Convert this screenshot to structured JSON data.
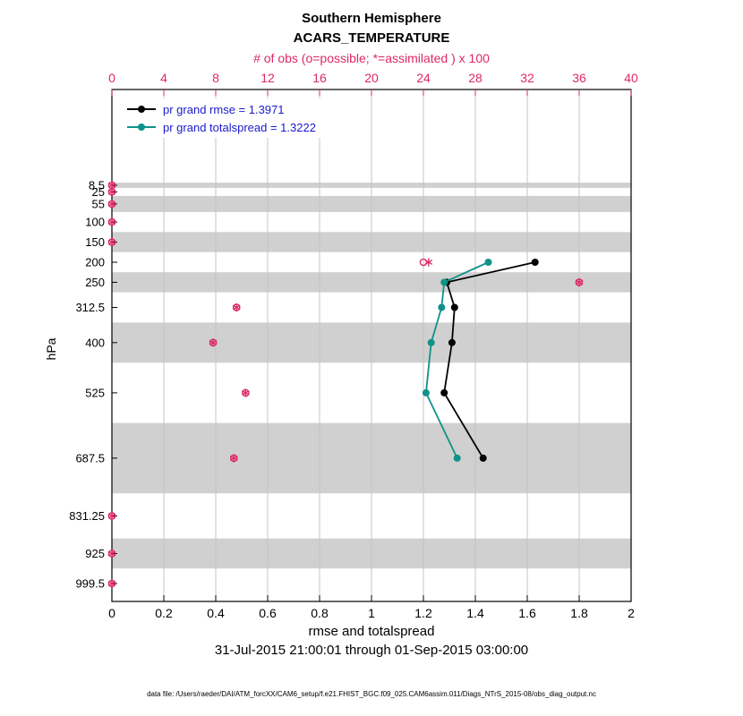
{
  "header": {
    "title_line1": "Southern Hemisphere",
    "title_line2": "ACARS_TEMPERATURE",
    "obs_axis_label": "# of obs (o=possible; *=assimilated ) x 100"
  },
  "legend": {
    "text_color": "#1a1acd",
    "items": [
      {
        "label": "pr grand rmse = 1.3971",
        "color": "#000000"
      },
      {
        "label": "pr grand totalspread = 1.3222",
        "color": "#0f9289"
      }
    ]
  },
  "footer": {
    "xlabel": "rmse and totalspread",
    "date_range": "31-Jul-2015 21:00:01 through 01-Sep-2015 03:00:00",
    "data_file": "data file: /Users/raeder/DAI/ATM_forcXX/CAM6_setup/f.e21.FHIST_BGC.f09_025.CAM6assim.011/Diags_NTrS_2015-08/obs_diag_output.nc"
  },
  "chart_data": {
    "type": "line",
    "title": "Southern Hemisphere",
    "subtitle": "ACARS_TEMPERATURE",
    "xlabel_bottom": "rmse and totalspread",
    "xlabel_top": "# of obs (o=possible; *=assimilated ) x 100",
    "ylabel": "hPa",
    "y_axis_direction": "pressure increases downward, linear",
    "x_bottom_range": [
      0,
      2
    ],
    "x_top_range": [
      0,
      40
    ],
    "x_bottom_ticks": [
      "0",
      "0.2",
      "0.4",
      "0.6",
      "0.8",
      "1",
      "1.2",
      "1.4",
      "1.6",
      "1.8",
      "2"
    ],
    "x_top_ticks": [
      "0",
      "4",
      "8",
      "12",
      "16",
      "20",
      "24",
      "28",
      "32",
      "36",
      "40"
    ],
    "y_levels_hpa": [
      8.5,
      25,
      55,
      100,
      150,
      200,
      250,
      312.5,
      400,
      525,
      687.5,
      831.25,
      925,
      999.5
    ],
    "y_level_labels": [
      "8.5",
      "25",
      "55",
      "100",
      "150",
      "200",
      "250",
      "312.5",
      "400",
      "525",
      "687.5",
      "831.25",
      "925",
      "999.5"
    ],
    "series": [
      {
        "name": "pr grand rmse = 1.3971",
        "grand_value": 1.3971,
        "color": "#000000",
        "levels_hpa": [
          200,
          250,
          312.5,
          400,
          525,
          687.5
        ],
        "values": [
          1.63,
          1.29,
          1.32,
          1.31,
          1.28,
          1.43
        ]
      },
      {
        "name": "pr grand totalspread = 1.3222",
        "grand_value": 1.3222,
        "color": "#0f9289",
        "levels_hpa": [
          200,
          250,
          312.5,
          400,
          525,
          687.5
        ],
        "values": [
          1.45,
          1.28,
          1.27,
          1.23,
          1.21,
          1.33
        ]
      }
    ],
    "obs_counts_x100": {
      "axis": "top",
      "levels_hpa": [
        8.5,
        25,
        55,
        100,
        150,
        200,
        250,
        312.5,
        400,
        525,
        687.5,
        831.25,
        925,
        999.5
      ],
      "possible": [
        0,
        0,
        0,
        0,
        0,
        24.0,
        36.0,
        9.6,
        7.8,
        10.3,
        9.4,
        0,
        0,
        0
      ],
      "assimilated": [
        0,
        0,
        0,
        0,
        0,
        24.4,
        36.0,
        9.6,
        7.8,
        10.3,
        9.4,
        0,
        0,
        0
      ]
    },
    "shaded_bands_hpa": [
      [
        2,
        15
      ],
      [
        35,
        75
      ],
      [
        125,
        175
      ],
      [
        225,
        275
      ],
      [
        350,
        450
      ],
      [
        600,
        775
      ],
      [
        887.5,
        962
      ]
    ],
    "grid": "vertical gridlines at bottom-axis ticks",
    "legend_position": "top-left inside plot",
    "colors": {
      "obs_marker": "#dd2864",
      "band": "#d0d0d0",
      "grid": "#c4c4c4",
      "axis": "#000000",
      "legend_text": "#1a1acd"
    }
  }
}
